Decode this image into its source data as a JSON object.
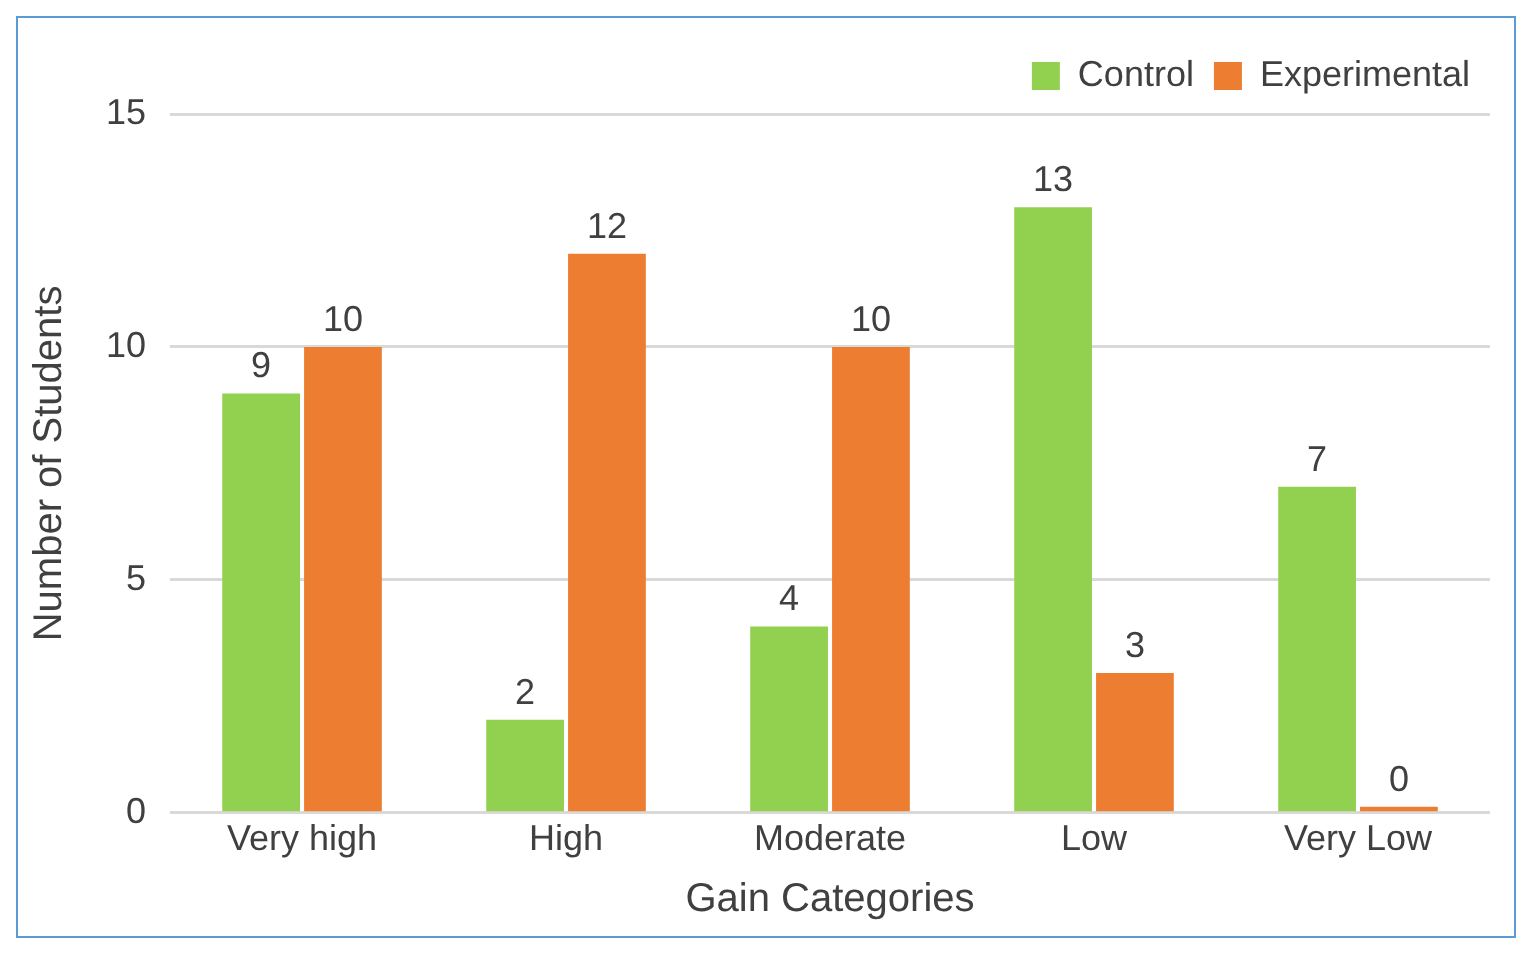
{
  "chart_data": {
    "type": "bar",
    "xlabel": "Gain Categories",
    "ylabel": "Number of Students",
    "categories": [
      "Very high",
      "High",
      "Moderate",
      "Low",
      "Very Low"
    ],
    "series": [
      {
        "name": "Control",
        "color": "#92d050",
        "values": [
          9,
          2,
          4,
          13,
          7
        ]
      },
      {
        "name": "Experimental",
        "color": "#ed7d31",
        "values": [
          10,
          12,
          10,
          3,
          0
        ]
      }
    ],
    "ylim": [
      0,
      15
    ],
    "yticks": [
      0,
      5,
      10,
      15
    ],
    "grid": "y",
    "legend": "top right",
    "data_labels": true
  }
}
